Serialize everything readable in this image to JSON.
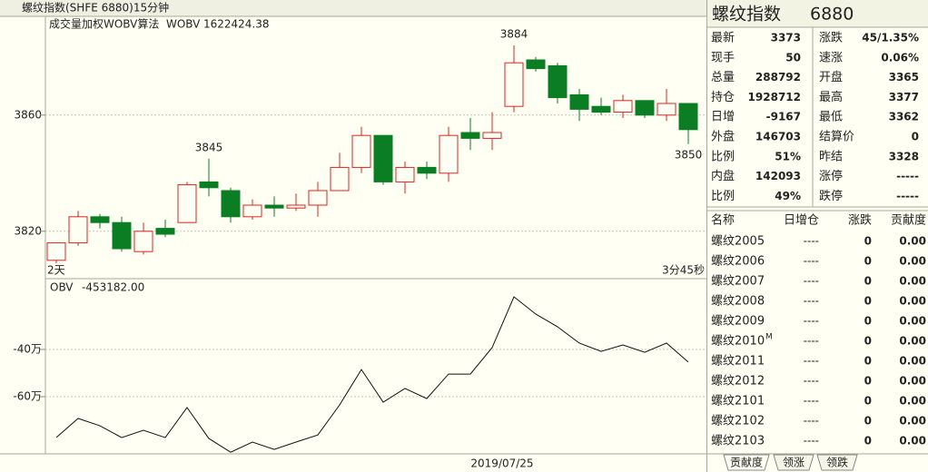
{
  "header": {
    "title": "螺纹指数(SHFE 6880)15分钟"
  },
  "chart_data": [
    {
      "type": "candlestick",
      "indicator": "成交量加权WOBV算法",
      "indicator_name": "WOBV",
      "indicator_value": "1622424.38",
      "left_note": "2天",
      "right_note": "3分45秒",
      "up_color": "#d8241e",
      "down_color": "#0b7d22",
      "open": [
        3810,
        3816,
        3825,
        3823,
        3813,
        3821,
        3823,
        3837,
        3834,
        3825,
        3829,
        3828,
        3829,
        3834,
        3842,
        3853,
        3837,
        3842,
        3840,
        3854,
        3852,
        3863,
        3879,
        3877,
        3867,
        3863,
        3861,
        3865,
        3860,
        3864
      ],
      "high": [
        3816,
        3827,
        3826,
        3825,
        3823,
        3824,
        3837,
        3845,
        3835,
        3831,
        3832,
        3833,
        3837,
        3847,
        3856,
        3853,
        3844,
        3844,
        3856,
        3859,
        3861,
        3884,
        3880,
        3878,
        3869,
        3866,
        3867,
        3865,
        3869,
        3864
      ],
      "low": [
        3809,
        3815,
        3821,
        3813,
        3812,
        3818,
        3823,
        3832,
        3823,
        3824,
        3825,
        3827,
        3825,
        3834,
        3840,
        3836,
        3833,
        3838,
        3837,
        3848,
        3848,
        3861,
        3875,
        3864,
        3858,
        3860,
        3859,
        3859,
        3858,
        3850
      ],
      "close": [
        3816,
        3825,
        3823,
        3814,
        3820,
        3819,
        3836,
        3835,
        3825,
        3829,
        3828,
        3829,
        3834,
        3842,
        3853,
        3837,
        3842,
        3840,
        3853,
        3852,
        3854,
        3878,
        3876,
        3866,
        3862,
        3861,
        3865,
        3860,
        3864,
        3855
      ],
      "annotations": [
        {
          "label": "3845",
          "value": 3845,
          "index": 7
        },
        {
          "label": "3884",
          "value": 3884,
          "index": 21
        },
        {
          "label": "3850",
          "value": 3850,
          "index": 29
        }
      ],
      "ylim": [
        3804,
        3894
      ],
      "yticks": [
        3820,
        3860
      ],
      "grid": true
    },
    {
      "type": "line",
      "name": "OBV",
      "value_label": "-453182.00",
      "color": "#111111",
      "values": [
        -773000,
        -692000,
        -723000,
        -773000,
        -742000,
        -773000,
        -646000,
        -777000,
        -835000,
        -792000,
        -823000,
        -792000,
        -762000,
        -635000,
        -485000,
        -623000,
        -565000,
        -608000,
        -504000,
        -504000,
        -392000,
        -177000,
        -250000,
        -304000,
        -373000,
        -408000,
        -381000,
        -412000,
        -373000,
        -453182
      ],
      "ylim": [
        -842000,
        -104000
      ],
      "yticks": [
        {
          "value": -600000,
          "label": "-60万"
        },
        {
          "value": -400000,
          "label": "-40万"
        }
      ],
      "grid": true,
      "date_label": "2019/07/25"
    }
  ],
  "quote": {
    "title": "螺纹指数",
    "code": "6880",
    "rows": [
      [
        "最新",
        "3373",
        "涨跌",
        "45/1.35%"
      ],
      [
        "现手",
        "50",
        "速涨",
        "0.06%"
      ],
      [
        "总量",
        "288792",
        "开盘",
        "3365"
      ],
      [
        "持仓",
        "1928712",
        "最高",
        "3377"
      ],
      [
        "日增",
        "-9167",
        "最低",
        "3362"
      ],
      [
        "外盘",
        "146703",
        "结算价",
        "0"
      ],
      [
        "比例",
        "51%",
        "昨结",
        "3328"
      ],
      [
        "内盘",
        "142093",
        "涨停",
        "-----"
      ],
      [
        "比例",
        "49%",
        "跌停",
        "-----"
      ]
    ],
    "value_colors": [
      [
        "#e00000",
        "#e00000"
      ],
      [
        "#3a7f9a",
        "#e00000"
      ],
      [
        "#3a7f9a",
        "#e00000"
      ],
      [
        "#3a7f9a",
        "#e00000"
      ],
      [
        "#3a7f9a",
        "#e00000"
      ],
      [
        "#3a7f9a",
        "#111111"
      ],
      [
        "#3a7f9a",
        "#111111"
      ],
      [
        "#3a7f9a",
        "#e06040"
      ],
      [
        "#3a7f9a",
        "#e06040"
      ]
    ]
  },
  "table": {
    "headers": [
      "名称",
      "日增仓",
      "涨跌",
      "贡献度"
    ],
    "rows": [
      {
        "cells": [
          "螺纹2005",
          "----",
          "0",
          "0.00"
        ]
      },
      {
        "cells": [
          "螺纹2006",
          "----",
          "0",
          "0.00"
        ]
      },
      {
        "cells": [
          "螺纹2007",
          "----",
          "0",
          "0.00"
        ]
      },
      {
        "cells": [
          "螺纹2008",
          "----",
          "0",
          "0.00"
        ]
      },
      {
        "cells": [
          "螺纹2009",
          "----",
          "0",
          "0.00"
        ]
      },
      {
        "cells": [
          "螺纹2010",
          "----",
          "0",
          "0.00"
        ],
        "tag": "M"
      },
      {
        "cells": [
          "螺纹2011",
          "----",
          "0",
          "0.00"
        ]
      },
      {
        "cells": [
          "螺纹2012",
          "----",
          "0",
          "0.00"
        ]
      },
      {
        "cells": [
          "螺纹2101",
          "----",
          "0",
          "0.00"
        ]
      },
      {
        "cells": [
          "螺纹2102",
          "----",
          "0",
          "0.00"
        ]
      },
      {
        "cells": [
          "螺纹2103",
          "----",
          "0",
          "0.00"
        ]
      }
    ]
  },
  "tabs": [
    "贡献度",
    "领涨",
    "领跌"
  ]
}
